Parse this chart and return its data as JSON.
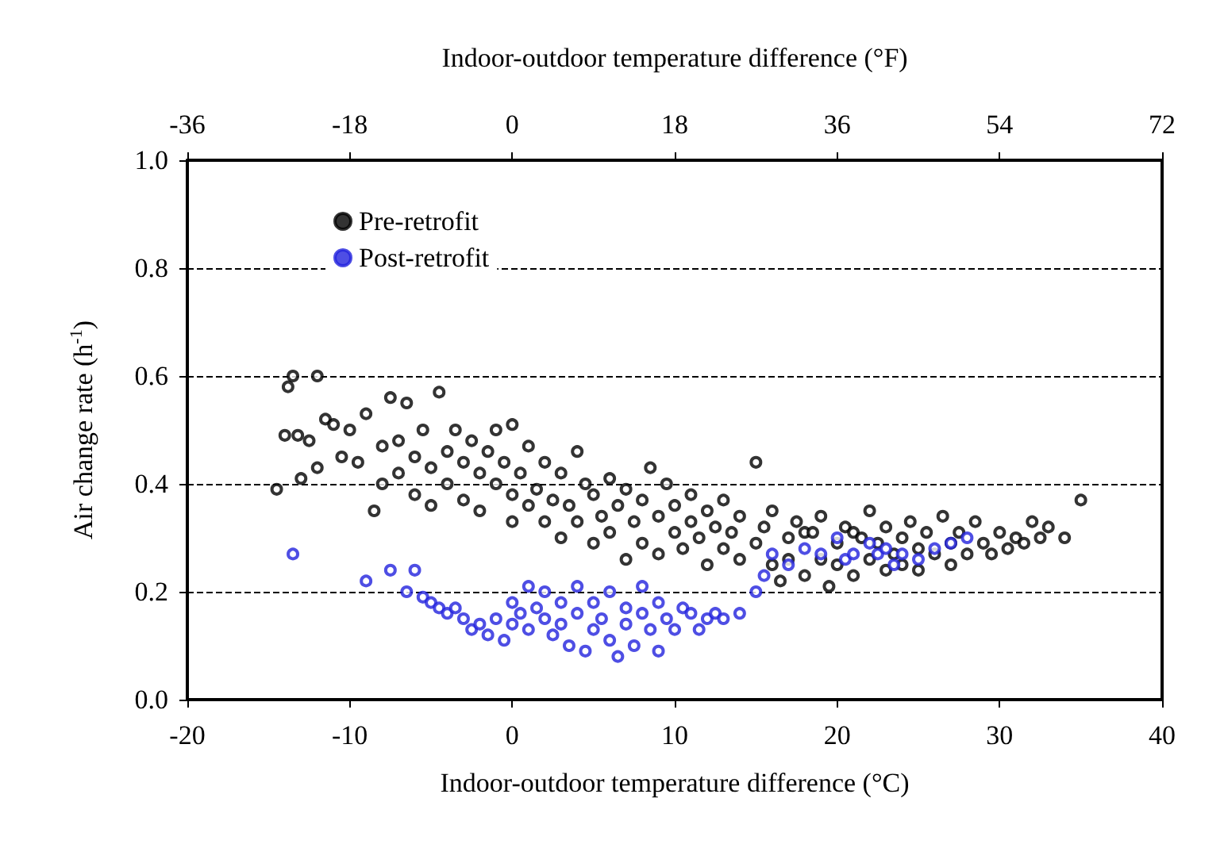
{
  "chart_data": {
    "type": "scatter",
    "xlabel": "Indoor-outdoor temperature difference (°C)",
    "x2label": "Indoor-outdoor temperature difference (°F)",
    "ylabel": "Air change rate (h$^{-1}$)",
    "xlim": [
      -20,
      40
    ],
    "xticks": [
      -20,
      -10,
      0,
      10,
      20,
      30,
      40
    ],
    "x2lim": [
      -36,
      72
    ],
    "x2ticks": [
      -36,
      -18,
      0,
      18,
      36,
      54,
      72
    ],
    "ylim": [
      0,
      1
    ],
    "yticks": [
      {
        "value": 0,
        "label": "0.0"
      },
      {
        "value": 0.2,
        "label": "0.2"
      },
      {
        "value": 0.4,
        "label": "0.4"
      },
      {
        "value": 0.6,
        "label": "0.6"
      },
      {
        "value": 0.8,
        "label": "0.8"
      },
      {
        "value": 1,
        "label": "1.0"
      }
    ],
    "grid": "y",
    "legend": "top left",
    "marker": "circle",
    "series": [
      {
        "name": "Pre-retrofit",
        "color": "#000000",
        "x": [
          -14.5,
          -14,
          -13.8,
          -13.5,
          -13.2,
          -13,
          -12.5,
          -12,
          -12,
          -11.5,
          -11,
          -10.5,
          -10,
          -9.5,
          -9,
          -8.5,
          -8,
          -8,
          -7.5,
          -7,
          -7,
          -6.5,
          -6,
          -6,
          -5.5,
          -5,
          -5,
          -4.5,
          -4,
          -4,
          -3.5,
          -3,
          -3,
          -2.5,
          -2,
          -2,
          -1.5,
          -1,
          -1,
          -0.5,
          0,
          0,
          0,
          0.5,
          1,
          1,
          1.5,
          2,
          2,
          2.5,
          3,
          3,
          3.5,
          4,
          4,
          4.5,
          5,
          5,
          5.5,
          6,
          6,
          6.5,
          7,
          7,
          7.5,
          8,
          8,
          8.5,
          9,
          9,
          9.5,
          10,
          10,
          10.5,
          11,
          11,
          11.5,
          12,
          12,
          12.5,
          13,
          13,
          13.5,
          14,
          14,
          15,
          15,
          15.5,
          16,
          16,
          16.5,
          17,
          17,
          17.5,
          18,
          18,
          18.5,
          19,
          19,
          19.5,
          20,
          20,
          20.5,
          21,
          21,
          21.5,
          22,
          22,
          22.5,
          23,
          23,
          23.5,
          24,
          24,
          24.5,
          25,
          25,
          25.5,
          26,
          26.5,
          27,
          27,
          27.5,
          28,
          28.5,
          29,
          29.5,
          30,
          30.5,
          31,
          31.5,
          32,
          32.5,
          33,
          34,
          35
        ],
        "values": [
          0.39,
          0.49,
          0.58,
          0.6,
          0.49,
          0.41,
          0.48,
          0.6,
          0.43,
          0.52,
          0.51,
          0.45,
          0.5,
          0.44,
          0.53,
          0.35,
          0.47,
          0.4,
          0.56,
          0.48,
          0.42,
          0.55,
          0.45,
          0.38,
          0.5,
          0.43,
          0.36,
          0.57,
          0.46,
          0.4,
          0.5,
          0.44,
          0.37,
          0.48,
          0.42,
          0.35,
          0.46,
          0.4,
          0.5,
          0.44,
          0.51,
          0.38,
          0.33,
          0.42,
          0.36,
          0.47,
          0.39,
          0.33,
          0.44,
          0.37,
          0.3,
          0.42,
          0.36,
          0.46,
          0.33,
          0.4,
          0.29,
          0.38,
          0.34,
          0.41,
          0.31,
          0.36,
          0.26,
          0.39,
          0.33,
          0.37,
          0.29,
          0.43,
          0.34,
          0.27,
          0.4,
          0.31,
          0.36,
          0.28,
          0.33,
          0.38,
          0.3,
          0.35,
          0.25,
          0.32,
          0.28,
          0.37,
          0.31,
          0.26,
          0.34,
          0.29,
          0.44,
          0.32,
          0.25,
          0.35,
          0.22,
          0.3,
          0.26,
          0.33,
          0.31,
          0.23,
          0.31,
          0.26,
          0.34,
          0.21,
          0.29,
          0.25,
          0.32,
          0.31,
          0.23,
          0.3,
          0.35,
          0.26,
          0.29,
          0.24,
          0.32,
          0.27,
          0.3,
          0.25,
          0.33,
          0.28,
          0.24,
          0.31,
          0.27,
          0.34,
          0.29,
          0.25,
          0.31,
          0.27,
          0.33,
          0.29,
          0.27,
          0.31,
          0.28,
          0.3,
          0.29,
          0.33,
          0.3,
          0.32,
          0.3,
          0.37
        ]
      },
      {
        "name": "Post-retrofit",
        "color": "#2222dd",
        "x": [
          -13.5,
          -9,
          -7.5,
          -6.5,
          -6,
          -5.5,
          -5,
          -4.5,
          -4,
          -3.5,
          -3,
          -2.5,
          -2,
          -1.5,
          -1,
          -0.5,
          0,
          0,
          0.5,
          1,
          1,
          1.5,
          2,
          2,
          2.5,
          3,
          3,
          3.5,
          4,
          4,
          4.5,
          5,
          5,
          5.5,
          6,
          6,
          6.5,
          7,
          7,
          7.5,
          8,
          8,
          8.5,
          9,
          9,
          9.5,
          10,
          10.5,
          11,
          11.5,
          12,
          12.5,
          13,
          14,
          15,
          15.5,
          16,
          17,
          18,
          19,
          20,
          20.5,
          21,
          22,
          22.5,
          23,
          23.5,
          24,
          25,
          26,
          27,
          28
        ],
        "values": [
          0.27,
          0.22,
          0.24,
          0.2,
          0.24,
          0.19,
          0.18,
          0.17,
          0.16,
          0.17,
          0.15,
          0.13,
          0.14,
          0.12,
          0.15,
          0.11,
          0.14,
          0.18,
          0.16,
          0.21,
          0.13,
          0.17,
          0.15,
          0.2,
          0.12,
          0.18,
          0.14,
          0.1,
          0.16,
          0.21,
          0.09,
          0.13,
          0.18,
          0.15,
          0.11,
          0.2,
          0.08,
          0.14,
          0.17,
          0.1,
          0.16,
          0.21,
          0.13,
          0.09,
          0.18,
          0.15,
          0.13,
          0.17,
          0.16,
          0.13,
          0.15,
          0.16,
          0.15,
          0.16,
          0.2,
          0.23,
          0.27,
          0.25,
          0.28,
          0.27,
          0.3,
          0.26,
          0.27,
          0.29,
          0.27,
          0.28,
          0.25,
          0.27,
          0.26,
          0.28,
          0.29,
          0.3
        ]
      }
    ]
  }
}
